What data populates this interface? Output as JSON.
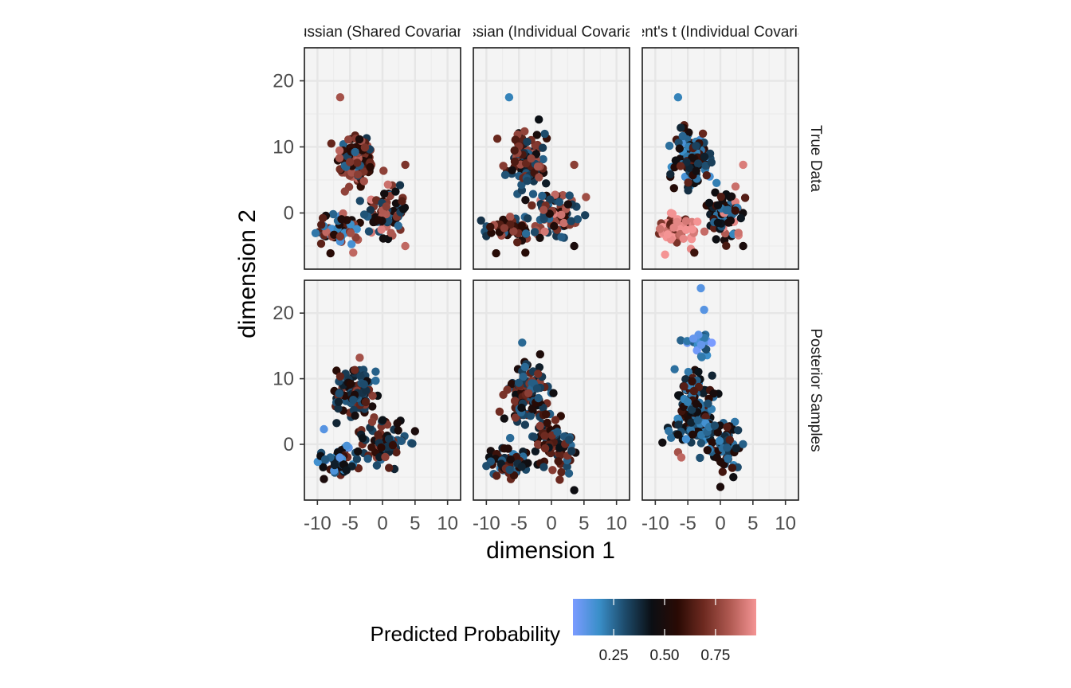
{
  "chart_data": {
    "type": "scatter",
    "xlabel": "dimension 1",
    "ylabel": "dimension 2",
    "xlim": [
      -12,
      12
    ],
    "ylim": [
      -8.5,
      25
    ],
    "x_ticks": [
      -10,
      -5,
      0,
      5,
      10
    ],
    "x_tick_labels": [
      "-10",
      "-5",
      "0",
      "5",
      "10"
    ],
    "y_ticks": [
      0,
      10,
      20
    ],
    "y_tick_labels": [
      "0",
      "10",
      "20"
    ],
    "grid": true,
    "columns": [
      "Gaussian (Shared Covariance)",
      "Gaussian (Individual Covariance)",
      "Student's t (Individual Covariance)"
    ],
    "rows": [
      "True Data",
      "Posterior Samples"
    ],
    "legend": {
      "title": "Predicted Probability",
      "position": "bottom",
      "ticks": [
        0.25,
        0.5,
        0.75
      ],
      "tick_labels": [
        "0.25",
        "0.50",
        "0.75"
      ],
      "range": [
        0.05,
        0.95
      ],
      "colors": [
        "#7a9bff",
        "#3a8fc9",
        "#1d4a6a",
        "#0b0f14",
        "#2a0a04",
        "#6e2a20",
        "#b05a52",
        "#f49494"
      ]
    },
    "clusters": [
      {
        "row": 0,
        "col": 0,
        "points": [
          [
            -6.5,
            17.5,
            0.8
          ],
          [
            3.5,
            7.3,
            0.72
          ],
          [
            -8,
            -6.1,
            0.55
          ],
          [
            -4.5,
            -6,
            0.85
          ],
          [
            3.5,
            -5,
            0.85
          ]
        ],
        "groups": [
          {
            "cx": -4,
            "cy": 8,
            "sx": 1.5,
            "sy": 2.2,
            "n": 110,
            "p": [
              0.3,
              0.55,
              0.7,
              0.8
            ]
          },
          {
            "cx": 0.5,
            "cy": 0,
            "sx": 1.6,
            "sy": 1.8,
            "n": 80,
            "p": [
              0.3,
              0.5,
              0.7,
              0.85
            ]
          },
          {
            "cx": -6.5,
            "cy": -2.5,
            "sx": 1.8,
            "sy": 1.2,
            "n": 55,
            "p": [
              0.2,
              0.5,
              0.7,
              0.8
            ]
          }
        ]
      },
      {
        "row": 0,
        "col": 1,
        "points": [
          [
            -6.5,
            17.5,
            0.2
          ],
          [
            3.5,
            7.3,
            0.75
          ],
          [
            -8.5,
            -6.1,
            0.55
          ],
          [
            -4,
            -6,
            0.55
          ],
          [
            3.5,
            -5,
            0.5
          ]
        ],
        "groups": [
          {
            "cx": -4,
            "cy": 8,
            "sx": 1.5,
            "sy": 2.2,
            "n": 110,
            "p": [
              0.3,
              0.45,
              0.65,
              0.75
            ]
          },
          {
            "cx": 0.5,
            "cy": 0,
            "sx": 1.6,
            "sy": 1.8,
            "n": 80,
            "p": [
              0.3,
              0.55,
              0.75,
              0.85
            ]
          },
          {
            "cx": -6.5,
            "cy": -2.5,
            "sx": 1.8,
            "sy": 1.2,
            "n": 55,
            "p": [
              0.3,
              0.5,
              0.6,
              0.75
            ]
          }
        ]
      },
      {
        "row": 0,
        "col": 2,
        "points": [
          [
            -6.5,
            17.5,
            0.2
          ],
          [
            3.5,
            7.3,
            0.9
          ],
          [
            -8.5,
            -6.3,
            0.95
          ],
          [
            -4,
            -6,
            0.6
          ],
          [
            3.5,
            -5,
            0.5
          ]
        ],
        "groups": [
          {
            "cx": -4,
            "cy": 8,
            "sx": 1.5,
            "sy": 2.2,
            "n": 110,
            "p": [
              0.2,
              0.35,
              0.5,
              0.65
            ]
          },
          {
            "cx": 0.5,
            "cy": 0,
            "sx": 1.6,
            "sy": 1.8,
            "n": 80,
            "p": [
              0.25,
              0.45,
              0.6,
              0.88
            ]
          },
          {
            "cx": -6.5,
            "cy": -2.5,
            "sx": 1.8,
            "sy": 1.2,
            "n": 55,
            "p": [
              0.88,
              0.92,
              0.95,
              0.7
            ]
          }
        ]
      },
      {
        "row": 1,
        "col": 0,
        "points": [
          [
            -9,
            2.3,
            0.12
          ],
          [
            -3.5,
            13.2,
            0.8
          ],
          [
            5,
            2,
            0.5
          ],
          [
            -9,
            -5.3,
            0.5
          ],
          [
            1,
            -3.6,
            0.65
          ]
        ],
        "groups": [
          {
            "cx": -4,
            "cy": 8,
            "sx": 1.5,
            "sy": 2.0,
            "n": 110,
            "p": [
              0.3,
              0.35,
              0.5,
              0.7
            ]
          },
          {
            "cx": 0.5,
            "cy": 0.5,
            "sx": 1.7,
            "sy": 1.6,
            "n": 80,
            "p": [
              0.3,
              0.4,
              0.55,
              0.7
            ]
          },
          {
            "cx": -6.5,
            "cy": -2.5,
            "sx": 1.7,
            "sy": 1.1,
            "n": 55,
            "p": [
              0.15,
              0.3,
              0.45,
              0.65
            ]
          }
        ]
      },
      {
        "row": 1,
        "col": 1,
        "points": [
          [
            -4.5,
            15.5,
            0.25
          ],
          [
            3.5,
            -7,
            0.45
          ],
          [
            -10,
            -3.3,
            0.3
          ]
        ],
        "groups": [
          {
            "cx": -4,
            "cy": 8,
            "sx": 1.5,
            "sy": 2.3,
            "n": 115,
            "p": [
              0.3,
              0.35,
              0.5,
              0.7
            ]
          },
          {
            "cx": 0.5,
            "cy": 0,
            "sx": 1.5,
            "sy": 1.8,
            "n": 80,
            "p": [
              0.3,
              0.45,
              0.6,
              0.7
            ]
          },
          {
            "cx": -6.5,
            "cy": -2.5,
            "sx": 1.8,
            "sy": 1.2,
            "n": 55,
            "p": [
              0.25,
              0.35,
              0.5,
              0.65
            ]
          }
        ]
      },
      {
        "row": 1,
        "col": 2,
        "points": [
          [
            -3,
            23.8,
            0.12
          ],
          [
            -2.5,
            20.5,
            0.12
          ],
          [
            -6.5,
            -1.2,
            0.8
          ],
          [
            -6,
            -2,
            0.85
          ],
          [
            0,
            -6.5,
            0.5
          ],
          [
            2,
            -5,
            0.45
          ]
        ],
        "groups": [
          {
            "cx": -3.5,
            "cy": 15,
            "sx": 1.3,
            "sy": 1.3,
            "n": 22,
            "p": [
              0.1,
              0.15,
              0.2,
              0.25
            ]
          },
          {
            "cx": -4,
            "cy": 7,
            "sx": 1.5,
            "sy": 2.4,
            "n": 120,
            "p": [
              0.25,
              0.4,
              0.5,
              0.6
            ]
          },
          {
            "cx": -3,
            "cy": 2,
            "sx": 2.2,
            "sy": 1.0,
            "n": 60,
            "p": [
              0.2,
              0.25,
              0.35,
              0.5
            ]
          },
          {
            "cx": 0.5,
            "cy": 0,
            "sx": 1.4,
            "sy": 1.8,
            "n": 60,
            "p": [
              0.25,
              0.35,
              0.5,
              0.6
            ]
          }
        ]
      }
    ]
  }
}
